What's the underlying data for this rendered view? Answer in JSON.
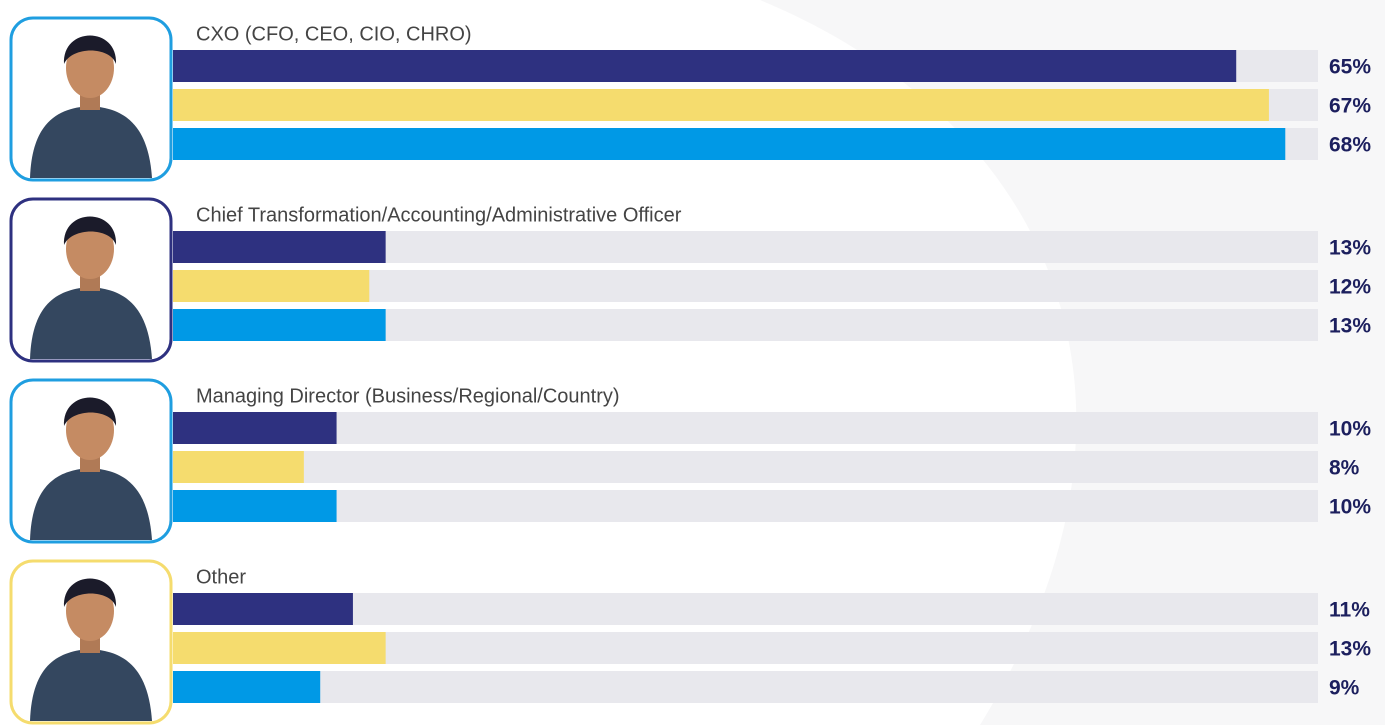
{
  "chart_data": {
    "type": "bar",
    "orientation": "horizontal",
    "categories": [
      "CXO (CFO, CEO, CIO, CHRO)",
      "Chief Transformation/Accounting/Administrative Officer",
      "Managing Director (Business/Regional/Country)",
      "Other"
    ],
    "series": [
      {
        "color": "#2e3180",
        "values": [
          65,
          13,
          10,
          11
        ],
        "value_labels": [
          "65%",
          "13%",
          "10%",
          "11%"
        ]
      },
      {
        "color": "#f5dc6e",
        "values": [
          67,
          12,
          8,
          13
        ],
        "value_labels": [
          "67%",
          "12%",
          "8%",
          "13%"
        ]
      },
      {
        "color": "#0099e6",
        "values": [
          68,
          13,
          10,
          9
        ],
        "value_labels": [
          "68%",
          "13%",
          "10%",
          "9%"
        ]
      }
    ],
    "xlim": [
      0,
      70
    ],
    "avatar_colors": [
      "#1f9ee0",
      "#2e3180",
      "#1f9ee0",
      "#f5dc6e"
    ]
  }
}
